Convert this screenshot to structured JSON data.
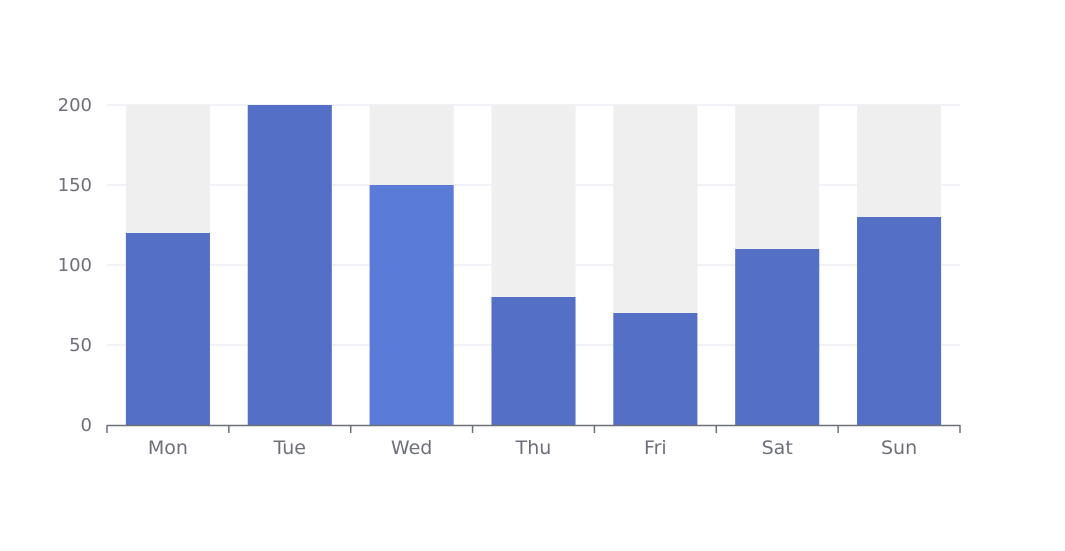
{
  "chart_data": {
    "type": "bar",
    "categories": [
      "Mon",
      "Tue",
      "Wed",
      "Thu",
      "Fri",
      "Sat",
      "Sun"
    ],
    "values": [
      120,
      200,
      150,
      80,
      70,
      110,
      130
    ],
    "background_bars": true,
    "ylim": [
      0,
      200
    ],
    "yticks": [
      0,
      50,
      100,
      150,
      200
    ],
    "grid": true,
    "title": "",
    "xlabel": "",
    "ylabel": "",
    "highlighted_category": "Wed"
  },
  "colors": {
    "bar": "#5470c6",
    "bar_highlight": "#5b7bd9",
    "background_bar": "#efefef",
    "grid": "#e0e6f1",
    "axis": "#6e7079",
    "label": "#6e7079"
  }
}
